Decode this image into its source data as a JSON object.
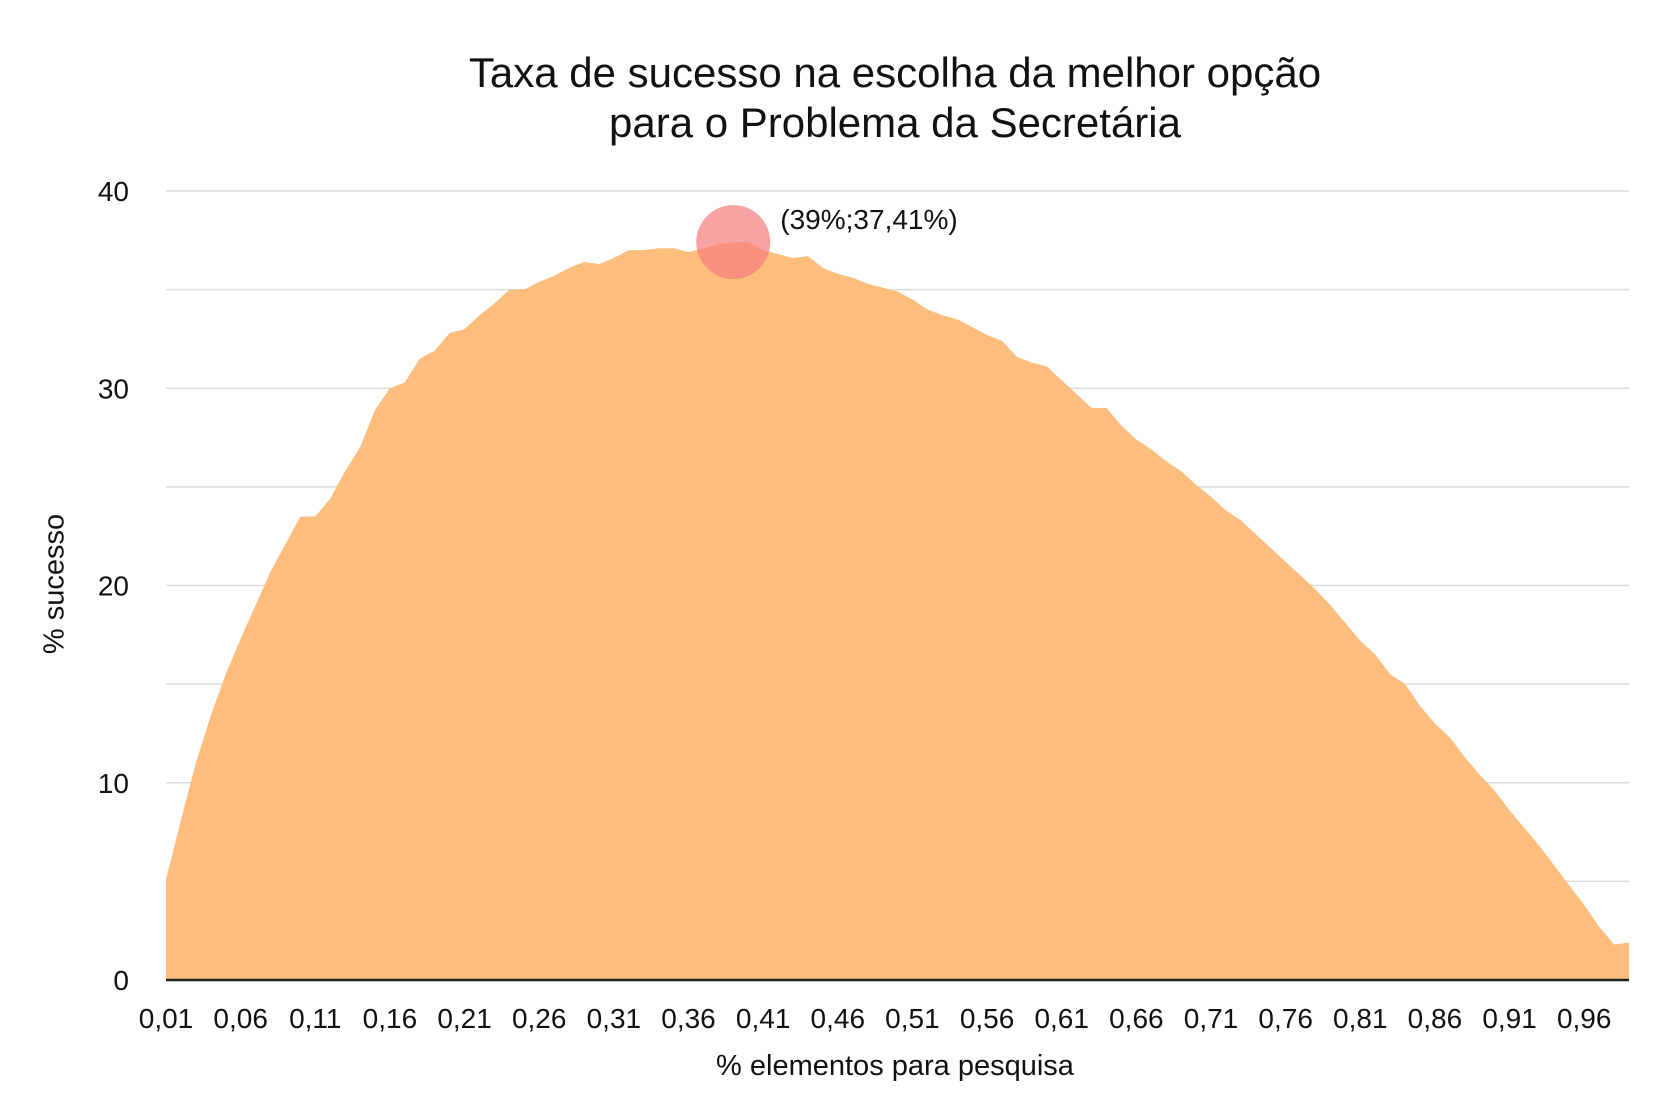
{
  "chart_data": {
    "type": "area",
    "title": [
      "Taxa de sucesso na escolha da melhor opção",
      "para o Problema da Secretária"
    ],
    "xlabel": "% elementos para pesquisa",
    "ylabel": "% sucesso",
    "ylim": [
      0,
      40
    ],
    "y_ticks": [
      0,
      10,
      20,
      30,
      40
    ],
    "x_tick_labels": [
      "0,01",
      "0,06",
      "0,11",
      "0,16",
      "0,21",
      "0,26",
      "0,31",
      "0,36",
      "0,41",
      "0,46",
      "0,51",
      "0,56",
      "0,61",
      "0,66",
      "0,71",
      "0,76",
      "0,81",
      "0,86",
      "0,91",
      "0,96"
    ],
    "grid": true,
    "series": [
      {
        "color": "#FDBD7C",
        "x": [
          0.01,
          0.02,
          0.03,
          0.04,
          0.05,
          0.06,
          0.07,
          0.08,
          0.09,
          0.1,
          0.11,
          0.12,
          0.13,
          0.14,
          0.15,
          0.16,
          0.17,
          0.18,
          0.19,
          0.2,
          0.21,
          0.22,
          0.23,
          0.24,
          0.25,
          0.26,
          0.27,
          0.28,
          0.29,
          0.3,
          0.31,
          0.32,
          0.33,
          0.34,
          0.35,
          0.36,
          0.37,
          0.38,
          0.39,
          0.4,
          0.41,
          0.42,
          0.43,
          0.44,
          0.45,
          0.46,
          0.47,
          0.48,
          0.49,
          0.5,
          0.51,
          0.52,
          0.53,
          0.54,
          0.55,
          0.56,
          0.57,
          0.58,
          0.59,
          0.6,
          0.61,
          0.62,
          0.63,
          0.64,
          0.65,
          0.66,
          0.67,
          0.68,
          0.69,
          0.7,
          0.71,
          0.72,
          0.73,
          0.74,
          0.75,
          0.76,
          0.77,
          0.78,
          0.79,
          0.8,
          0.81,
          0.82,
          0.83,
          0.84,
          0.85,
          0.86,
          0.87,
          0.88,
          0.89,
          0.9,
          0.91,
          0.92,
          0.93,
          0.94,
          0.95,
          0.96,
          0.97,
          0.98,
          0.99
        ],
        "values": [
          5.1,
          8.1,
          11.0,
          13.4,
          15.5,
          17.3,
          19.0,
          20.7,
          22.1,
          23.5,
          23.5,
          24.4,
          25.8,
          27.0,
          28.9,
          30.0,
          30.3,
          31.5,
          31.9,
          32.8,
          33.0,
          33.7,
          34.3,
          35.0,
          35.0,
          35.4,
          35.7,
          36.1,
          36.4,
          36.3,
          36.6,
          37.0,
          37.0,
          37.1,
          37.1,
          36.9,
          37.1,
          37.3,
          37.41,
          37.4,
          37.0,
          36.8,
          36.6,
          36.7,
          36.1,
          35.8,
          35.6,
          35.3,
          35.1,
          34.9,
          34.5,
          34.0,
          33.7,
          33.5,
          33.1,
          32.7,
          32.4,
          31.6,
          31.3,
          31.1,
          30.4,
          29.7,
          29.0,
          29.0,
          28.1,
          27.4,
          26.9,
          26.3,
          25.8,
          25.1,
          24.5,
          23.8,
          23.3,
          22.6,
          21.9,
          21.2,
          20.5,
          19.8,
          19.0,
          18.1,
          17.2,
          16.5,
          15.5,
          15.0,
          13.9,
          13.0,
          12.3,
          11.3,
          10.4,
          9.6,
          8.6,
          7.7,
          6.8,
          5.8,
          4.8,
          3.8,
          2.7,
          1.8,
          1.9
        ]
      }
    ],
    "highlight": {
      "x": 0.39,
      "y": 37.41,
      "label": "(39%;37,41%)",
      "color": "#F47F7F"
    }
  }
}
